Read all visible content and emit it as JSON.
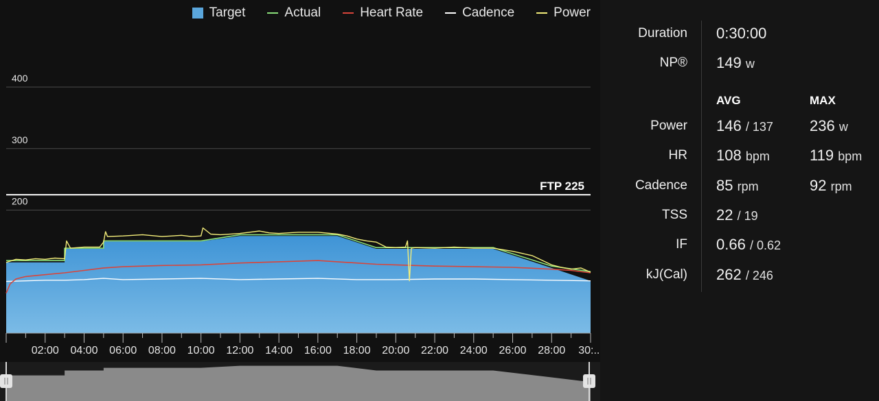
{
  "chart_data": {
    "type": "area",
    "x_unit": "minutes",
    "y_unit": "watts",
    "xlim": [
      0,
      30
    ],
    "ylim": [
      0,
      400
    ],
    "y_gridlines": [
      200,
      300,
      400
    ],
    "x_tick_labels": [
      "02:00",
      "04:00",
      "06:00",
      "08:00",
      "10:00",
      "12:00",
      "14:00",
      "16:00",
      "18:00",
      "20:00",
      "22:00",
      "24:00",
      "26:00",
      "28:00",
      "30:..."
    ],
    "ftp": {
      "label": "FTP 225",
      "value": 225
    },
    "legend": [
      {
        "name": "Target",
        "color": "#5aa6dc",
        "kind": "box"
      },
      {
        "name": "Actual",
        "color": "#8be07a",
        "kind": "line"
      },
      {
        "name": "Heart Rate",
        "color": "#d9453a",
        "kind": "line"
      },
      {
        "name": "Cadence",
        "color": "#ffffff",
        "kind": "line"
      },
      {
        "name": "Power",
        "color": "#f4ee7a",
        "kind": "line"
      }
    ],
    "series": [
      {
        "name": "Target",
        "x": [
          0,
          3,
          3,
          5,
          5,
          10,
          12,
          17,
          19,
          19,
          25,
          28,
          30
        ],
        "y": [
          115,
          115,
          137,
          137,
          149,
          149,
          158,
          158,
          137,
          137,
          137,
          106,
          85
        ]
      },
      {
        "name": "Actual",
        "x": [
          0,
          3,
          3,
          5,
          5,
          10,
          12,
          17,
          19,
          19,
          25,
          28,
          30
        ],
        "y": [
          118,
          118,
          138,
          138,
          150,
          150,
          160,
          160,
          139,
          139,
          139,
          109,
          100
        ]
      },
      {
        "name": "Power",
        "x": [
          0,
          0.5,
          1,
          1.5,
          2,
          2.5,
          3,
          3.1,
          3.3,
          4,
          4.8,
          5,
          5.1,
          5.2,
          6,
          7,
          8,
          9,
          9.5,
          10,
          10.1,
          10.5,
          11,
          12,
          13,
          13.5,
          14,
          15,
          16,
          17,
          17.5,
          18,
          18.5,
          19,
          19.5,
          20,
          20.5,
          20.6,
          20.7,
          20.8,
          21,
          22,
          23,
          24,
          25,
          26,
          27,
          28,
          28.5,
          29,
          29.5,
          30
        ],
        "y": [
          115,
          120,
          119,
          121,
          120,
          122,
          121,
          150,
          138,
          140,
          140,
          148,
          165,
          157,
          158,
          160,
          157,
          159,
          157,
          158,
          171,
          161,
          160,
          162,
          166,
          163,
          162,
          164,
          164,
          161,
          158,
          153,
          150,
          148,
          140,
          139,
          140,
          150,
          85,
          138,
          139,
          138,
          140,
          138,
          138,
          133,
          126,
          111,
          107,
          104,
          106,
          99
        ]
      },
      {
        "name": "Heart Rate",
        "x": [
          0,
          0.2,
          0.5,
          1,
          2,
          3,
          4,
          5,
          6,
          8,
          10,
          12,
          14,
          16,
          17,
          18,
          19,
          20,
          21,
          22,
          24,
          26,
          28,
          29,
          30
        ],
        "y": [
          65,
          80,
          88,
          92,
          95,
          98,
          102,
          106,
          108,
          110,
          111,
          114,
          116,
          118,
          116,
          114,
          112,
          111,
          110,
          109,
          108,
          107,
          104,
          102,
          98
        ]
      },
      {
        "name": "Cadence",
        "x": [
          0,
          1,
          2,
          3,
          4,
          5,
          6,
          8,
          10,
          12,
          14,
          16,
          18,
          20,
          22,
          24,
          26,
          28,
          30
        ],
        "y": [
          84,
          85,
          86,
          86,
          87,
          89,
          87,
          88,
          89,
          87,
          88,
          89,
          87,
          87,
          88,
          88,
          87,
          86,
          85
        ]
      }
    ]
  },
  "stats": {
    "duration": {
      "label": "Duration",
      "value": "0:30:00"
    },
    "np": {
      "label": "NP®",
      "value": "149",
      "unit": "w"
    },
    "headers": {
      "avg": "AVG",
      "max": "MAX"
    },
    "rows": [
      {
        "label": "Power",
        "avg": "146",
        "avg_sub": "/ 137",
        "max": "236",
        "unit": "w"
      },
      {
        "label": "HR",
        "avg": "108",
        "avg_unit": "bpm",
        "max": "119",
        "unit": "bpm"
      },
      {
        "label": "Cadence",
        "avg": "85",
        "avg_unit": "rpm",
        "max": "92",
        "unit": "rpm"
      },
      {
        "label": "TSS",
        "avg": "22",
        "avg_sub": "/ 19"
      },
      {
        "label": "IF",
        "avg": "0.66",
        "avg_sub": "/ 0.62"
      },
      {
        "label": "kJ(Cal)",
        "avg": "262",
        "avg_sub": "/ 246"
      }
    ]
  }
}
